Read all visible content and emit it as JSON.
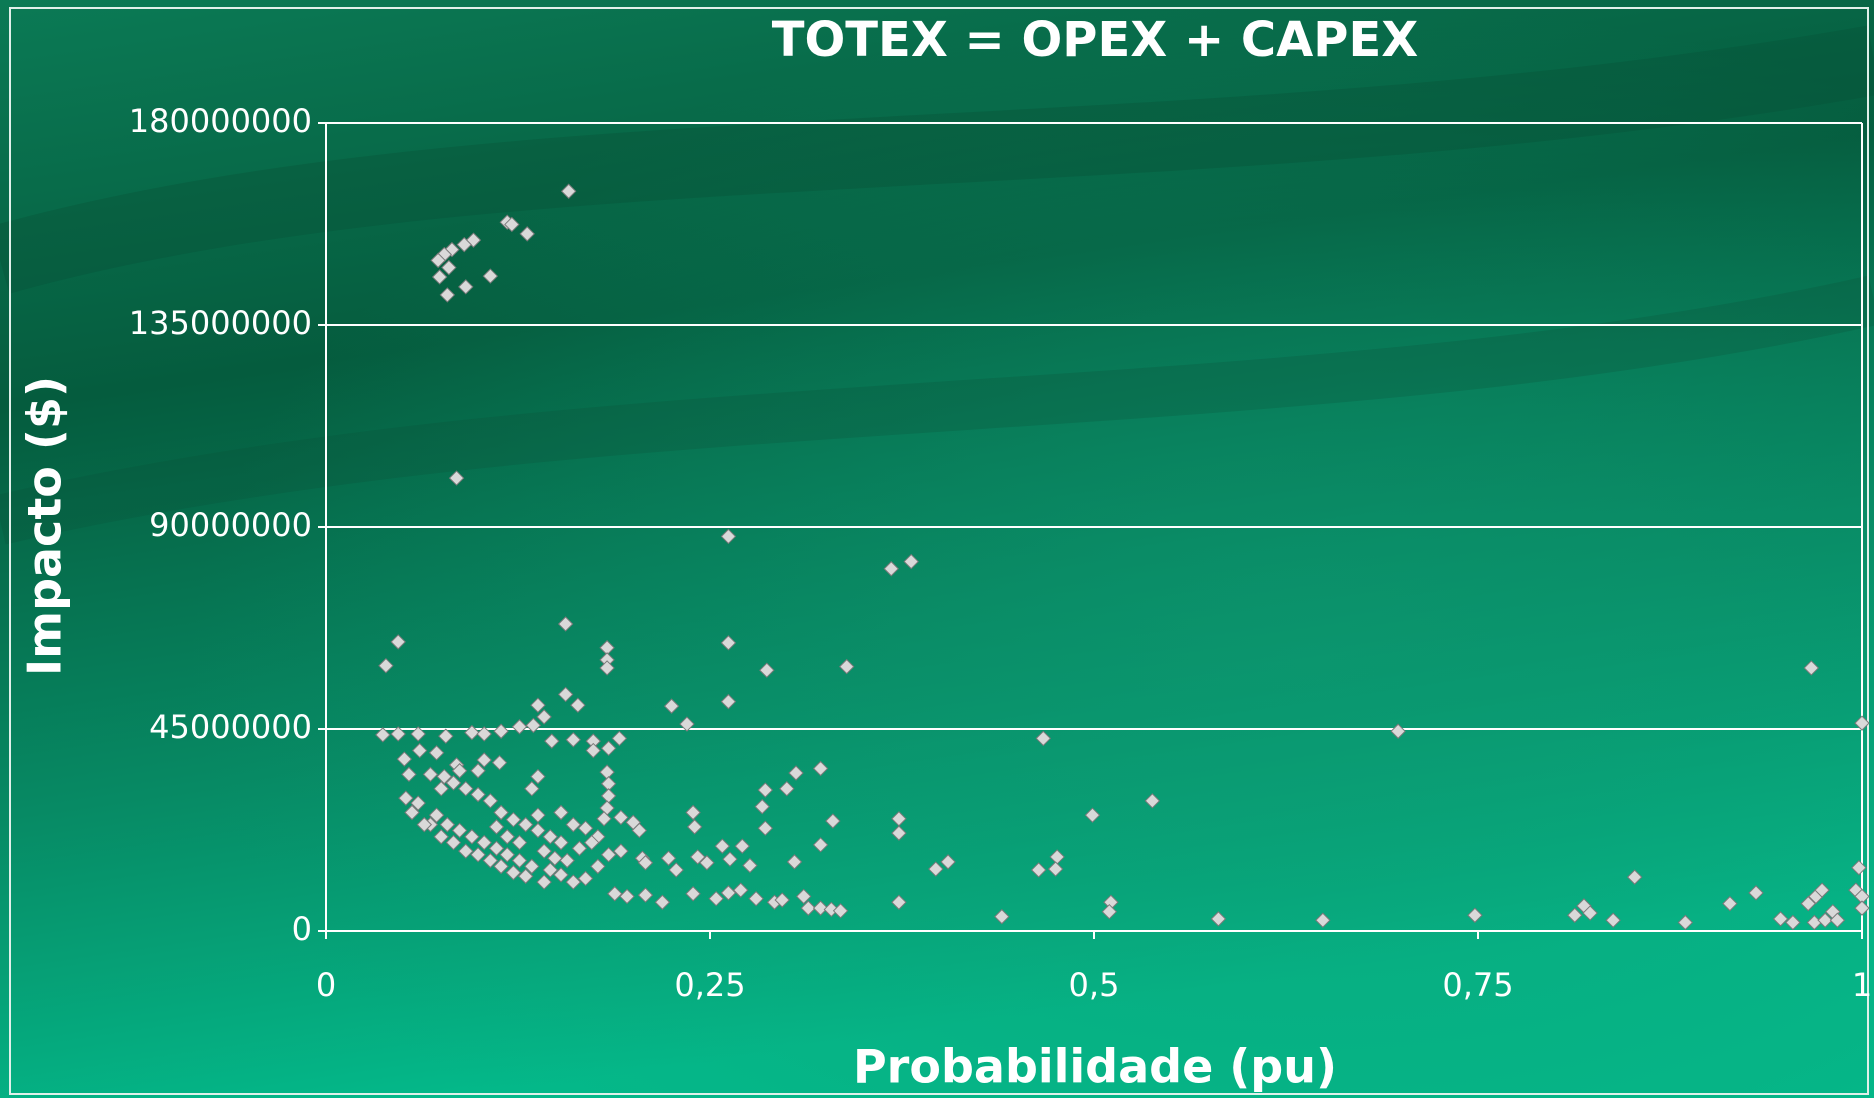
{
  "chart_data": {
    "type": "scatter",
    "title": "TOTEX = OPEX + CAPEX",
    "xlabel": "Probabilidade (pu)",
    "ylabel": "Impacto ($)",
    "xlim": [
      0,
      1
    ],
    "xticks": [
      0,
      {
        "value": 0.25,
        "label": "0,25"
      },
      {
        "value": 0.5,
        "label": "0,5"
      },
      {
        "value": 0.75,
        "label": "0,75"
      },
      1
    ],
    "ylim": [
      0,
      180000000
    ],
    "yticks": [
      0,
      45000000,
      90000000,
      135000000,
      180000000
    ],
    "grid": true,
    "color": "#d9d9d9",
    "x": [
      0.158,
      0.118,
      0.121,
      0.131,
      0.096,
      0.09,
      0.082,
      0.077,
      0.073,
      0.08,
      0.074,
      0.107,
      0.091,
      0.079,
      0.085,
      0.262,
      0.368,
      0.381,
      0.156,
      0.047,
      0.039,
      0.183,
      0.183,
      0.183,
      0.262,
      0.287,
      0.339,
      0.967,
      0.156,
      0.164,
      0.225,
      0.262,
      0.235,
      0.138,
      0.142,
      1.0,
      0.698,
      0.467,
      0.037,
      0.047,
      0.06,
      0.078,
      0.095,
      0.103,
      0.114,
      0.126,
      0.135,
      0.147,
      0.161,
      0.174,
      0.191,
      0.174,
      0.184,
      0.051,
      0.061,
      0.072,
      0.054,
      0.085,
      0.103,
      0.113,
      0.138,
      0.183,
      0.184,
      0.184,
      0.183,
      0.322,
      0.306,
      0.3,
      0.286,
      0.284,
      0.538,
      0.499,
      0.33,
      0.373,
      0.373,
      0.286,
      0.239,
      0.24,
      0.204,
      0.192,
      0.2,
      0.322,
      0.476,
      0.405,
      0.397,
      0.464,
      0.475,
      0.852,
      0.998,
      0.305,
      0.271,
      0.258,
      0.263,
      0.276,
      0.242,
      0.248,
      0.223,
      0.228,
      0.206,
      0.208,
      0.188,
      0.196,
      0.208,
      0.219,
      0.239,
      0.254,
      0.262,
      0.27,
      0.28,
      0.292,
      0.297,
      0.311,
      0.314,
      0.322,
      0.329,
      0.335,
      0.373,
      0.44,
      0.511,
      0.51,
      0.581,
      0.649,
      0.748,
      0.813,
      0.819,
      0.823,
      0.838,
      0.885,
      0.914,
      0.931,
      0.947,
      0.955,
      0.965,
      0.97,
      0.974,
      0.969,
      0.976,
      0.981,
      0.984,
      0.996,
      1.0,
      1.0,
      0.052,
      0.06,
      0.068,
      0.075,
      0.083,
      0.091,
      0.099,
      0.107,
      0.114,
      0.122,
      0.13,
      0.142,
      0.056,
      0.064,
      0.072,
      0.079,
      0.087,
      0.095,
      0.103,
      0.111,
      0.118,
      0.126,
      0.134,
      0.146,
      0.153,
      0.161,
      0.169,
      0.177,
      0.184,
      0.192,
      0.083,
      0.091,
      0.099,
      0.107,
      0.114,
      0.122,
      0.13,
      0.138,
      0.146,
      0.153,
      0.161,
      0.169,
      0.177,
      0.181,
      0.153,
      0.138,
      0.142,
      0.149,
      0.157,
      0.165,
      0.173,
      0.075,
      0.077,
      0.087,
      0.099,
      0.111,
      0.118,
      0.126,
      0.134,
      0.068
    ],
    "values": [
      164800000,
      157900000,
      157400000,
      155300000,
      153900000,
      152900000,
      151800000,
      150700000,
      149400000,
      147800000,
      145700000,
      145900000,
      143500000,
      141700000,
      100900000,
      87900000,
      80700000,
      82300000,
      68400000,
      64400000,
      59100000,
      63100000,
      60400000,
      58600000,
      64200000,
      58100000,
      58900000,
      58600000,
      52700000,
      50300000,
      50100000,
      51100000,
      46100000,
      50300000,
      47700000,
      46300000,
      44500000,
      42900000,
      43700000,
      43900000,
      43900000,
      43400000,
      44200000,
      43900000,
      44500000,
      45500000,
      45800000,
      42300000,
      42600000,
      42300000,
      42900000,
      40200000,
      40700000,
      38300000,
      40200000,
      39700000,
      34900000,
      37000000,
      38100000,
      37500000,
      34400000,
      35400000,
      32800000,
      30100000,
      27400000,
      36200000,
      35200000,
      31700000,
      31400000,
      27700000,
      29000000,
      25800000,
      24500000,
      25000000,
      21800000,
      22900000,
      26400000,
      23200000,
      22400000,
      25300000,
      24200000,
      19200000,
      16500000,
      15400000,
      13800000,
      13600000,
      13800000,
      12000000,
      14100000,
      15400000,
      18900000,
      18900000,
      16000000,
      14600000,
      16500000,
      15200000,
      16200000,
      13600000,
      16200000,
      15200000,
      8300000,
      7700000,
      8000000,
      6400000,
      8300000,
      7200000,
      8500000,
      9100000,
      7200000,
      6400000,
      6900000,
      7700000,
      5100000,
      5100000,
      4800000,
      4500000,
      6400000,
      3200000,
      6400000,
      4300000,
      2700000,
      2400000,
      3500000,
      3500000,
      5600000,
      4000000,
      2400000,
      1900000,
      6100000,
      8500000,
      2700000,
      1900000,
      6100000,
      7700000,
      9100000,
      1900000,
      2400000,
      4300000,
      2400000,
      9100000,
      7700000,
      5100000,
      29600000,
      28500000,
      23700000,
      21000000,
      19700000,
      17800000,
      17000000,
      15700000,
      14400000,
      13000000,
      12200000,
      10900000,
      26400000,
      23700000,
      25800000,
      23700000,
      22400000,
      21000000,
      19700000,
      18400000,
      17000000,
      15700000,
      14400000,
      13600000,
      12500000,
      10900000,
      11700000,
      14400000,
      17000000,
      17800000,
      33000000,
      31700000,
      30400000,
      29000000,
      26400000,
      24800000,
      23700000,
      22400000,
      21000000,
      19700000,
      23700000,
      22900000,
      21000000,
      25000000,
      26400000,
      25800000,
      17800000,
      16200000,
      15700000,
      18400000,
      19700000,
      31700000,
      34400000,
      35700000,
      35700000,
      23200000,
      21000000,
      19700000,
      31700000,
      34900000
    ]
  }
}
